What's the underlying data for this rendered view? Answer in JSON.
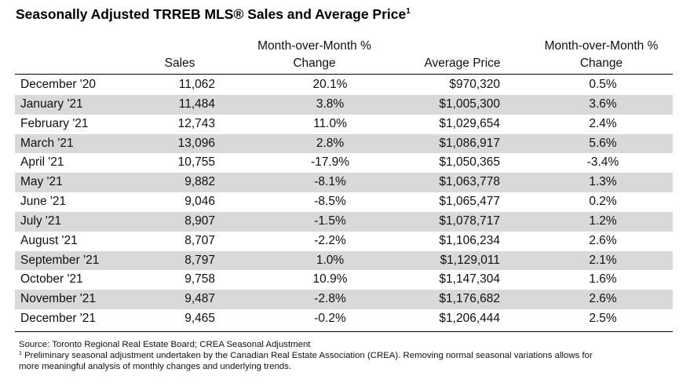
{
  "title": "Seasonally Adjusted TRREB MLS® Sales and Average Price",
  "title_sup": "1",
  "columns": {
    "sales": "Sales",
    "mom_line1": "Month-over-Month %",
    "mom_line2": "Change",
    "avg_price": "Average Price",
    "price_mom_line1": "Month-over-Month %",
    "price_mom_line2": "Change"
  },
  "rows": [
    {
      "month": "December '20",
      "sales": "11,062",
      "mom": "20.1%",
      "price": "$970,320",
      "price_mom": "0.5%"
    },
    {
      "month": "January '21",
      "sales": "11,484",
      "mom": "3.8%",
      "price": "$1,005,300",
      "price_mom": "3.6%"
    },
    {
      "month": "February '21",
      "sales": "12,743",
      "mom": "11.0%",
      "price": "$1,029,654",
      "price_mom": "2.4%"
    },
    {
      "month": "March '21",
      "sales": "13,096",
      "mom": "2.8%",
      "price": "$1,086,917",
      "price_mom": "5.6%"
    },
    {
      "month": "April '21",
      "sales": "10,755",
      "mom": "-17.9%",
      "price": "$1,050,365",
      "price_mom": "-3.4%"
    },
    {
      "month": "May '21",
      "sales": "9,882",
      "mom": "-8.1%",
      "price": "$1,063,778",
      "price_mom": "1.3%"
    },
    {
      "month": "June '21",
      "sales": "9,046",
      "mom": "-8.5%",
      "price": "$1,065,477",
      "price_mom": "0.2%"
    },
    {
      "month": "July '21",
      "sales": "8,907",
      "mom": "-1.5%",
      "price": "$1,078,717",
      "price_mom": "1.2%"
    },
    {
      "month": "August '21",
      "sales": "8,707",
      "mom": "-2.2%",
      "price": "$1,106,234",
      "price_mom": "2.6%"
    },
    {
      "month": "September '21",
      "sales": "8,797",
      "mom": "1.0%",
      "price": "$1,129,011",
      "price_mom": "2.1%"
    },
    {
      "month": "October '21",
      "sales": "9,758",
      "mom": "10.9%",
      "price": "$1,147,304",
      "price_mom": "1.6%"
    },
    {
      "month": "November '21",
      "sales": "9,487",
      "mom": "-2.8%",
      "price": "$1,176,682",
      "price_mom": "2.6%"
    },
    {
      "month": "December '21",
      "sales": "9,465",
      "mom": "-0.2%",
      "price": "$1,206,444",
      "price_mom": "2.5%"
    }
  ],
  "footnotes": {
    "source": "Source: Toronto Regional Real Estate Board; CREA Seasonal Adjustment",
    "note_sup": "1",
    "note_line1": " Preliminary seasonal adjustment undertaken by the Canadian Real Estate Association (CREA). Removing normal seasonal variations allows for",
    "note_line2": "more meaningful analysis of monthly changes and underlying trends."
  },
  "colors": {
    "row_shade": "#d9d9d9",
    "rule": "#000000"
  }
}
